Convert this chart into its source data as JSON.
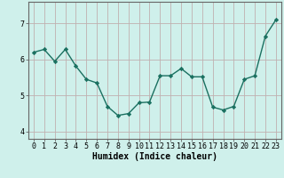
{
  "x": [
    0,
    1,
    2,
    3,
    4,
    5,
    6,
    7,
    8,
    9,
    10,
    11,
    12,
    13,
    14,
    15,
    16,
    17,
    18,
    19,
    20,
    21,
    22,
    23
  ],
  "y": [
    6.2,
    6.28,
    5.95,
    6.28,
    5.82,
    5.45,
    5.35,
    4.7,
    4.45,
    4.5,
    4.8,
    4.82,
    5.55,
    5.55,
    5.75,
    5.52,
    5.52,
    4.68,
    4.6,
    4.7,
    5.45,
    5.55,
    6.65,
    7.1
  ],
  "line_color": "#1a7060",
  "marker": "D",
  "markersize": 2.2,
  "linewidth": 1.0,
  "bg_color": "#cff0eb",
  "grid_color": "#c0b0b0",
  "xlabel": "Humidex (Indice chaleur)",
  "xlabel_fontsize": 7,
  "tick_fontsize": 6,
  "ylim": [
    3.8,
    7.6
  ],
  "yticks": [
    4,
    5,
    6,
    7
  ],
  "xticks": [
    0,
    1,
    2,
    3,
    4,
    5,
    6,
    7,
    8,
    9,
    10,
    11,
    12,
    13,
    14,
    15,
    16,
    17,
    18,
    19,
    20,
    21,
    22,
    23
  ]
}
